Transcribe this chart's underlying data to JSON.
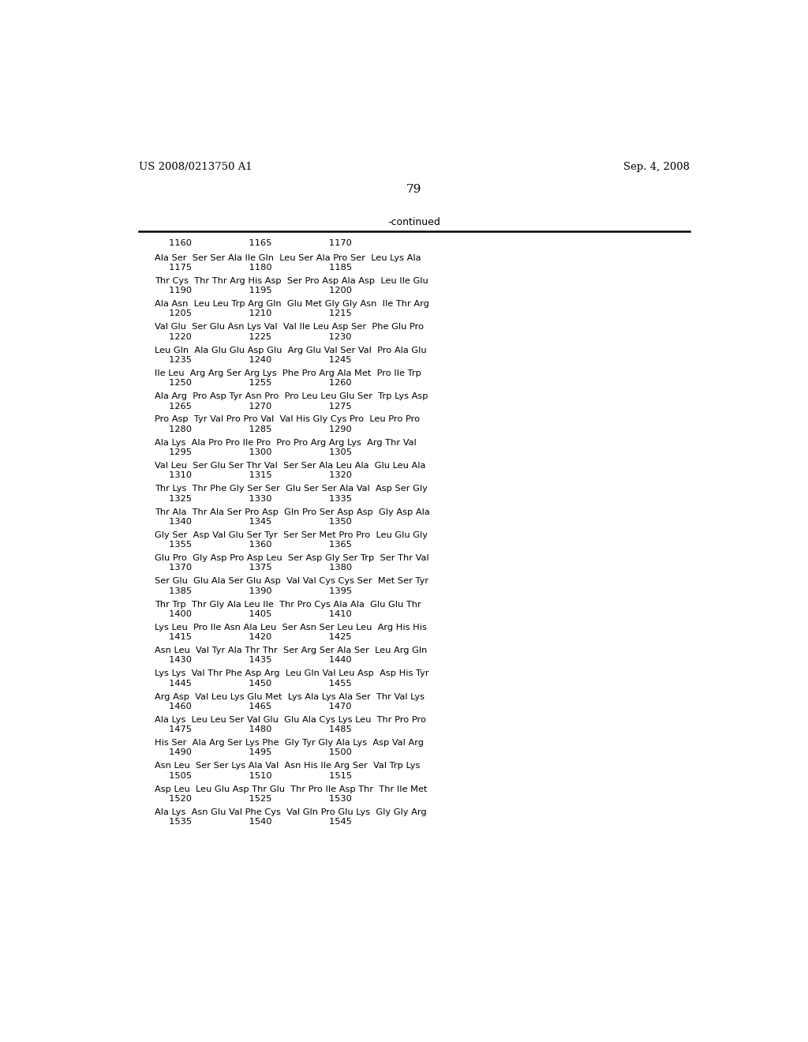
{
  "header_left": "US 2008/0213750 A1",
  "header_right": "Sep. 4, 2008",
  "page_number": "79",
  "continued_label": "-continued",
  "background_color": "#ffffff",
  "text_color": "#000000",
  "blocks": [
    {
      "seq": "Ala Ser  Ser Ser Ala Ile Gln  Leu Ser Ala Pro Ser  Leu Lys Ala",
      "num": "     1175                    1180                    1185"
    },
    {
      "seq": "Thr Cys  Thr Thr Arg His Asp  Ser Pro Asp Ala Asp  Leu Ile Glu",
      "num": "     1190                    1195                    1200"
    },
    {
      "seq": "Ala Asn  Leu Leu Trp Arg Gln  Glu Met Gly Gly Asn  Ile Thr Arg",
      "num": "     1205                    1210                    1215"
    },
    {
      "seq": "Val Glu  Ser Glu Asn Lys Val  Val Ile Leu Asp Ser  Phe Glu Pro",
      "num": "     1220                    1225                    1230"
    },
    {
      "seq": "Leu Gln  Ala Glu Glu Asp Glu  Arg Glu Val Ser Val  Pro Ala Glu",
      "num": "     1235                    1240                    1245"
    },
    {
      "seq": "Ile Leu  Arg Arg Ser Arg Lys  Phe Pro Arg Ala Met  Pro Ile Trp",
      "num": "     1250                    1255                    1260"
    },
    {
      "seq": "Ala Arg  Pro Asp Tyr Asn Pro  Pro Leu Leu Glu Ser  Trp Lys Asp",
      "num": "     1265                    1270                    1275"
    },
    {
      "seq": "Pro Asp  Tyr Val Pro Pro Val  Val His Gly Cys Pro  Leu Pro Pro",
      "num": "     1280                    1285                    1290"
    },
    {
      "seq": "Ala Lys  Ala Pro Pro Ile Pro  Pro Pro Arg Arg Lys  Arg Thr Val",
      "num": "     1295                    1300                    1305"
    },
    {
      "seq": "Val Leu  Ser Glu Ser Thr Val  Ser Ser Ala Leu Ala  Glu Leu Ala",
      "num": "     1310                    1315                    1320"
    },
    {
      "seq": "Thr Lys  Thr Phe Gly Ser Ser  Glu Ser Ser Ala Val  Asp Ser Gly",
      "num": "     1325                    1330                    1335"
    },
    {
      "seq": "Thr Ala  Thr Ala Ser Pro Asp  Gln Pro Ser Asp Asp  Gly Asp Ala",
      "num": "     1340                    1345                    1350"
    },
    {
      "seq": "Gly Ser  Asp Val Glu Ser Tyr  Ser Ser Met Pro Pro  Leu Glu Gly",
      "num": "     1355                    1360                    1365"
    },
    {
      "seq": "Glu Pro  Gly Asp Pro Asp Leu  Ser Asp Gly Ser Trp  Ser Thr Val",
      "num": "     1370                    1375                    1380"
    },
    {
      "seq": "Ser Glu  Glu Ala Ser Glu Asp  Val Val Cys Cys Ser  Met Ser Tyr",
      "num": "     1385                    1390                    1395"
    },
    {
      "seq": "Thr Trp  Thr Gly Ala Leu Ile  Thr Pro Cys Ala Ala  Glu Glu Thr",
      "num": "     1400                    1405                    1410"
    },
    {
      "seq": "Lys Leu  Pro Ile Asn Ala Leu  Ser Asn Ser Leu Leu  Arg His His",
      "num": "     1415                    1420                    1425"
    },
    {
      "seq": "Asn Leu  Val Tyr Ala Thr Thr  Ser Arg Ser Ala Ser  Leu Arg Gln",
      "num": "     1430                    1435                    1440"
    },
    {
      "seq": "Lys Lys  Val Thr Phe Asp Arg  Leu Gln Val Leu Asp  Asp His Tyr",
      "num": "     1445                    1450                    1455"
    },
    {
      "seq": "Arg Asp  Val Leu Lys Glu Met  Lys Ala Lys Ala Ser  Thr Val Lys",
      "num": "     1460                    1465                    1470"
    },
    {
      "seq": "Ala Lys  Leu Leu Ser Val Glu  Glu Ala Cys Lys Leu  Thr Pro Pro",
      "num": "     1475                    1480                    1485"
    },
    {
      "seq": "His Ser  Ala Arg Ser Lys Phe  Gly Tyr Gly Ala Lys  Asp Val Arg",
      "num": "     1490                    1495                    1500"
    },
    {
      "seq": "Asn Leu  Ser Ser Lys Ala Val  Asn His Ile Arg Ser  Val Trp Lys",
      "num": "     1505                    1510                    1515"
    },
    {
      "seq": "Asp Leu  Leu Glu Asp Thr Glu  Thr Pro Ile Asp Thr  Thr Ile Met",
      "num": "     1520                    1525                    1530"
    },
    {
      "seq": "Ala Lys  Asn Glu Val Phe Cys  Val Gln Pro Glu Lys  Gly Gly Arg",
      "num": "     1535                    1540                    1545"
    }
  ],
  "first_numline": "     1160                    1165                    1170"
}
